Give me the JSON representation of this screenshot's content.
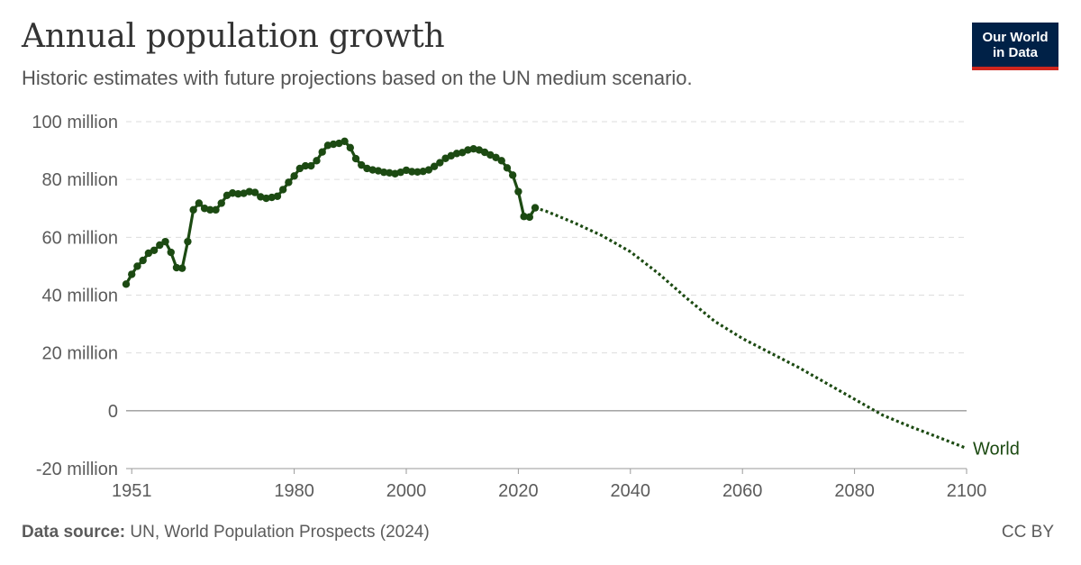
{
  "header": {
    "title": "Annual population growth",
    "subtitle": "Historic estimates with future projections based on the UN medium scenario.",
    "logo_line1": "Our World",
    "logo_line2": "in Data"
  },
  "footer": {
    "source_label": "Data source:",
    "source_text": " UN, World Population Prospects (2024)",
    "license": "CC BY"
  },
  "colors": {
    "series": "#1c4a12",
    "grid": "#dddddd",
    "axis": "#9a9a9a",
    "logo_bg": "#002147",
    "logo_accent": "#ce261e"
  },
  "chart_data": {
    "type": "line",
    "title": "Annual population growth",
    "subtitle": "Historic estimates with future projections based on the UN medium scenario.",
    "xlabel": "",
    "ylabel": "",
    "xlim": [
      1950,
      2100
    ],
    "ylim": [
      -20000000,
      100000000
    ],
    "x_ticks": [
      {
        "value": 1951,
        "label": "1951"
      },
      {
        "value": 1980,
        "label": "1980"
      },
      {
        "value": 2000,
        "label": "2000"
      },
      {
        "value": 2020,
        "label": "2020"
      },
      {
        "value": 2040,
        "label": "2040"
      },
      {
        "value": 2060,
        "label": "2060"
      },
      {
        "value": 2080,
        "label": "2080"
      },
      {
        "value": 2100,
        "label": "2100"
      }
    ],
    "y_ticks": [
      {
        "value": 100000000,
        "label": "100 million"
      },
      {
        "value": 80000000,
        "label": "80 million"
      },
      {
        "value": 60000000,
        "label": "60 million"
      },
      {
        "value": 40000000,
        "label": "40 million"
      },
      {
        "value": 20000000,
        "label": "20 million"
      },
      {
        "value": 0,
        "label": "0"
      },
      {
        "value": -20000000,
        "label": "-20 million"
      }
    ],
    "grid": true,
    "legend": "label at end of line",
    "series": [
      {
        "name": "World",
        "style": "solid",
        "markers": true,
        "x": [
          1950,
          1951,
          1952,
          1953,
          1954,
          1955,
          1956,
          1957,
          1958,
          1959,
          1960,
          1961,
          1962,
          1963,
          1964,
          1965,
          1966,
          1967,
          1968,
          1969,
          1970,
          1971,
          1972,
          1973,
          1974,
          1975,
          1976,
          1977,
          1978,
          1979,
          1980,
          1981,
          1982,
          1983,
          1984,
          1985,
          1986,
          1987,
          1988,
          1989,
          1990,
          1991,
          1992,
          1993,
          1994,
          1995,
          1996,
          1997,
          1998,
          1999,
          2000,
          2001,
          2002,
          2003,
          2004,
          2005,
          2006,
          2007,
          2008,
          2009,
          2010,
          2011,
          2012,
          2013,
          2014,
          2015,
          2016,
          2017,
          2018,
          2019,
          2020,
          2021,
          2022,
          2023
        ],
        "y": [
          43800000,
          47200000,
          50000000,
          52000000,
          54500000,
          55500000,
          57300000,
          58500000,
          54800000,
          49500000,
          49300000,
          58500000,
          69500000,
          71800000,
          70000000,
          69500000,
          69500000,
          71800000,
          74500000,
          75300000,
          75000000,
          75200000,
          75800000,
          75500000,
          74000000,
          73500000,
          73800000,
          74200000,
          76500000,
          79000000,
          81200000,
          83800000,
          84700000,
          84700000,
          86500000,
          89500000,
          91800000,
          92200000,
          92500000,
          93200000,
          91000000,
          87200000,
          85000000,
          83800000,
          83300000,
          83000000,
          82500000,
          82300000,
          82000000,
          82500000,
          83200000,
          82700000,
          82600000,
          82800000,
          83300000,
          84500000,
          85800000,
          87300000,
          88200000,
          89000000,
          89300000,
          90200000,
          90600000,
          90200000,
          89400000,
          88500000,
          87600000,
          86500000,
          84000000,
          81500000,
          75800000,
          67200000,
          67000000,
          70200000
        ]
      },
      {
        "name": "World",
        "style": "dotted",
        "markers": false,
        "x": [
          2023,
          2025,
          2030,
          2035,
          2040,
          2045,
          2050,
          2055,
          2060,
          2065,
          2070,
          2075,
          2080,
          2085,
          2090,
          2095,
          2100
        ],
        "y": [
          70200000,
          69000000,
          65000000,
          60500000,
          55000000,
          47500000,
          39000000,
          31000000,
          25000000,
          20000000,
          15000000,
          9500000,
          4000000,
          -1500000,
          -5500000,
          -9200000,
          -13000000
        ]
      }
    ]
  }
}
